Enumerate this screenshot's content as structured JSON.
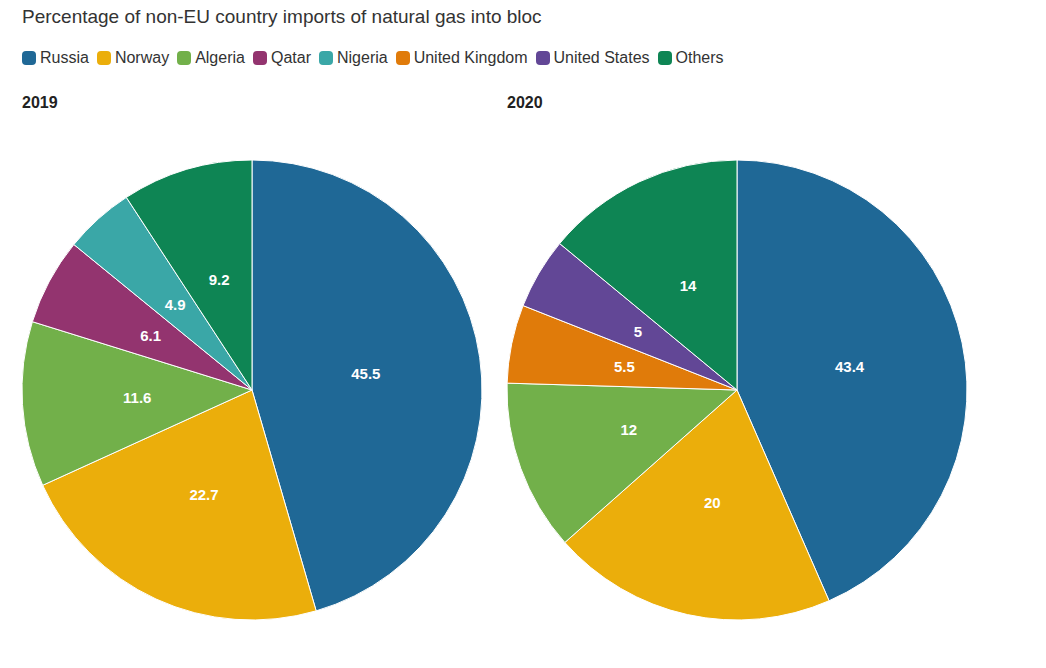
{
  "title": "Percentage of non-EU country imports of natural gas into bloc",
  "series": [
    {
      "name": "Russia",
      "color": "#1f6896"
    },
    {
      "name": "Norway",
      "color": "#ebae0b"
    },
    {
      "name": "Algeria",
      "color": "#72b04a"
    },
    {
      "name": "Qatar",
      "color": "#93346f"
    },
    {
      "name": "Nigeria",
      "color": "#3aa7a7"
    },
    {
      "name": "United Kingdom",
      "color": "#e07b0a"
    },
    {
      "name": "United States",
      "color": "#624796"
    },
    {
      "name": "Others",
      "color": "#0e8554"
    }
  ],
  "chart_data": [
    {
      "type": "pie",
      "title": "2019",
      "categories": [
        "Russia",
        "Norway",
        "Algeria",
        "Qatar",
        "Nigeria",
        "Others"
      ],
      "values": [
        45.5,
        22.7,
        11.6,
        6.1,
        4.9,
        9.2
      ],
      "data_labels": true
    },
    {
      "type": "pie",
      "title": "2020",
      "categories": [
        "Russia",
        "Norway",
        "Algeria",
        "United Kingdom",
        "United States",
        "Others"
      ],
      "values": [
        43.4,
        20,
        12,
        5.5,
        5,
        14
      ],
      "data_labels": true
    }
  ]
}
